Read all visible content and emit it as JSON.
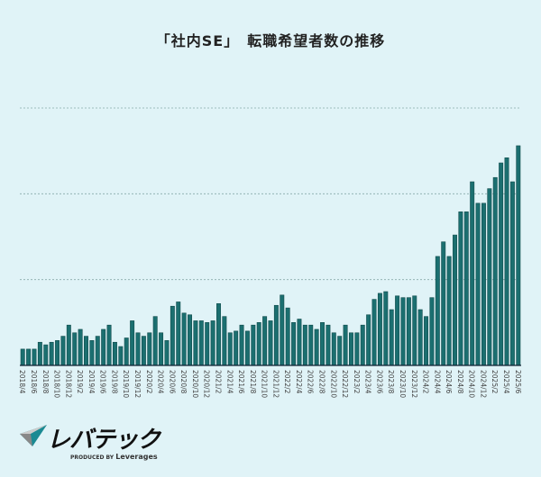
{
  "chart_data": {
    "type": "bar",
    "title": "「社内SE」　転職希望者数の推移",
    "xlabel": "",
    "ylabel": "",
    "ylim": [
      0,
      300
    ],
    "gridlines": [
      100,
      200,
      300
    ],
    "grid": "horizontal dotted",
    "y_tick_labels_shown": false,
    "bar_color": "#1b6f70",
    "background": "#e0f3f7",
    "categories": [
      "2018/4",
      "2018/5",
      "2018/6",
      "2018/7",
      "2018/8",
      "2018/9",
      "2018/10",
      "2018/11",
      "2018/12",
      "2019/1",
      "2019/2",
      "2019/3",
      "2019/4",
      "2019/5",
      "2019/6",
      "2019/7",
      "2019/8",
      "2019/9",
      "2019/10",
      "2019/11",
      "2019/12",
      "2020/1",
      "2020/2",
      "2020/3",
      "2020/4",
      "2020/5",
      "2020/6",
      "2020/7",
      "2020/8",
      "2020/9",
      "2020/10",
      "2020/11",
      "2020/12",
      "2021/1",
      "2021/2",
      "2021/3",
      "2021/4",
      "2021/5",
      "2021/6",
      "2021/7",
      "2021/8",
      "2021/9",
      "2021/10",
      "2021/11",
      "2021/12",
      "2022/1",
      "2022/2",
      "2022/3",
      "2022/4",
      "2022/5",
      "2022/6",
      "2022/7",
      "2022/8",
      "2022/9",
      "2022/10",
      "2022/11",
      "2022/12",
      "2023/1",
      "2023/2",
      "2023/3",
      "2023/4",
      "2023/5",
      "2023/6",
      "2023/7",
      "2023/8",
      "2023/9",
      "2023/10",
      "2023/11",
      "2023/12",
      "2024/1",
      "2024/2",
      "2024/3",
      "2024/4",
      "2024/5",
      "2024/6",
      "2024/7",
      "2024/8",
      "2024/9",
      "2024/10",
      "2024/11",
      "2024/12",
      "2025/1",
      "2025/2",
      "2025/3",
      "2025/4",
      "2025/5",
      "2025/6"
    ],
    "values": [
      19,
      19,
      19,
      27,
      24,
      27,
      29,
      34,
      47,
      38,
      42,
      34,
      29,
      34,
      42,
      47,
      27,
      22,
      32,
      52,
      38,
      34,
      38,
      57,
      38,
      29,
      69,
      74,
      61,
      59,
      52,
      52,
      50,
      52,
      72,
      57,
      38,
      40,
      47,
      40,
      47,
      50,
      57,
      52,
      70,
      82,
      67,
      50,
      54,
      47,
      47,
      42,
      50,
      47,
      38,
      34,
      47,
      38,
      38,
      47,
      59,
      77,
      84,
      86,
      65,
      81,
      79,
      79,
      81,
      65,
      57,
      79,
      127,
      144,
      127,
      152,
      179,
      179,
      214,
      189,
      189,
      206,
      219,
      236,
      242,
      214,
      256
    ],
    "tick_labels": [
      "2018/4",
      "2018/6",
      "2018/8",
      "2018/10",
      "2018/12",
      "2019/2",
      "2019/4",
      "2019/6",
      "2019/8",
      "2019/10",
      "2019/12",
      "2020/2",
      "2020/4",
      "2020/6",
      "2020/8",
      "2020/10",
      "2020/12",
      "2021/2",
      "2021/4",
      "2021/6",
      "2021/8",
      "2021/10",
      "2021/12",
      "2022/2",
      "2022/4",
      "2022/6",
      "2022/8",
      "2022/10",
      "2022/12",
      "2023/2",
      "2023/4",
      "2023/6",
      "2023/8",
      "2023/10",
      "2023/12",
      "2024/2",
      "2024/4",
      "2024/6",
      "2024/8",
      "2024/10",
      "2024/12",
      "2025/2",
      "2025/4",
      "2025/6"
    ]
  },
  "logo": {
    "name": "レバテック",
    "produced_by": "PRODUCED BY",
    "brand": "Leverages"
  }
}
